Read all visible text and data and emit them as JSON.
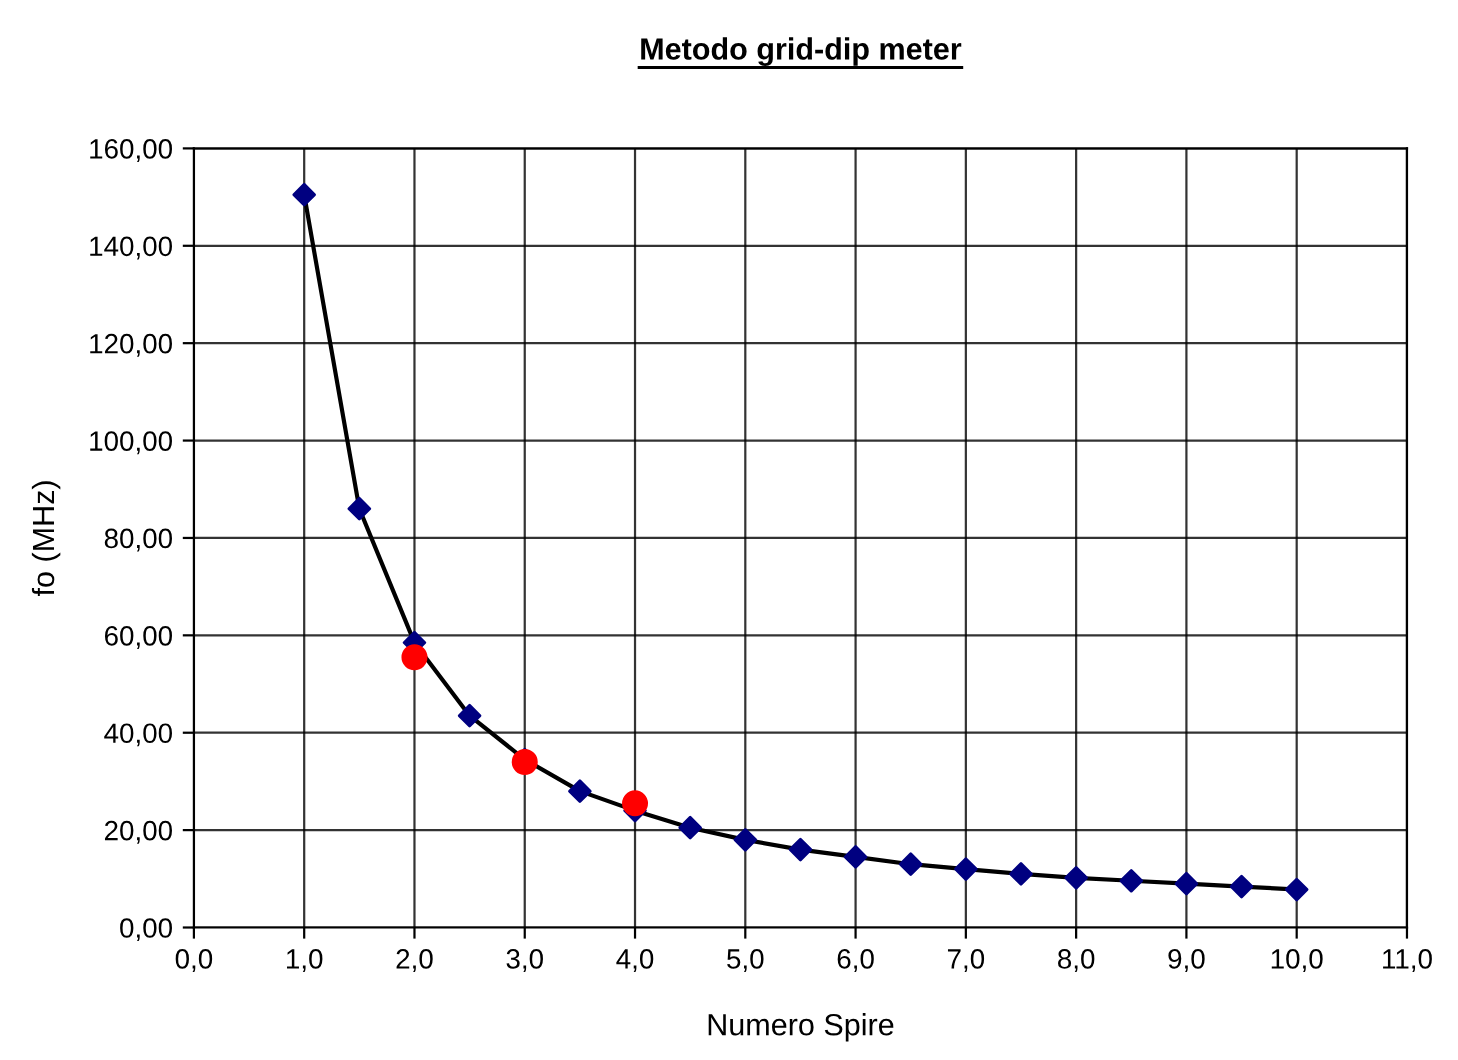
{
  "chart_data": {
    "type": "line",
    "title": "Metodo grid-dip meter",
    "xlabel": "Numero Spire",
    "ylabel": "fo (MHz)",
    "xlim": [
      0,
      11
    ],
    "ylim": [
      0,
      160
    ],
    "xticks": [
      {
        "value": 0,
        "label": "0,0"
      },
      {
        "value": 1,
        "label": "1,0"
      },
      {
        "value": 2,
        "label": "2,0"
      },
      {
        "value": 3,
        "label": "3,0"
      },
      {
        "value": 4,
        "label": "4,0"
      },
      {
        "value": 5,
        "label": "5,0"
      },
      {
        "value": 6,
        "label": "6,0"
      },
      {
        "value": 7,
        "label": "7,0"
      },
      {
        "value": 8,
        "label": "8,0"
      },
      {
        "value": 9,
        "label": "9,0"
      },
      {
        "value": 10,
        "label": "10,0"
      },
      {
        "value": 11,
        "label": "11,0"
      }
    ],
    "yticks": [
      {
        "value": 0,
        "label": "0,00"
      },
      {
        "value": 20,
        "label": "20,00"
      },
      {
        "value": 40,
        "label": "40,00"
      },
      {
        "value": 60,
        "label": "60,00"
      },
      {
        "value": 80,
        "label": "80,00"
      },
      {
        "value": 100,
        "label": "100,00"
      },
      {
        "value": 120,
        "label": "120,00"
      },
      {
        "value": 140,
        "label": "140,00"
      },
      {
        "value": 160,
        "label": "160,00"
      }
    ],
    "grid": true,
    "legend": false,
    "series": [
      {
        "marker": "diamond",
        "color": "#000000",
        "colors": [
          "#000080",
          "#000080",
          "#000080",
          "#000080",
          "#000080",
          "#000080",
          "#000080",
          "#000080",
          "#000080",
          "#000080",
          "#000080",
          "#000080",
          "#000080",
          "#000080",
          "#000080",
          "#000080",
          "#000080",
          "#000080",
          "#000080"
        ],
        "x": [
          1,
          1.5,
          2,
          2.5,
          3,
          3.5,
          4,
          4.5,
          5,
          5.5,
          6,
          6.5,
          7,
          7.5,
          8,
          8.5,
          9,
          9.5,
          10
        ],
        "values": [
          150.5,
          86,
          58.5,
          43.5,
          34.5,
          28,
          24,
          20.5,
          18,
          16,
          14.5,
          13,
          12,
          11,
          10.2,
          9.6,
          9,
          8.4,
          7.8
        ]
      },
      {
        "type": "scatter",
        "marker": "circle",
        "color": "#ff0000",
        "x": [
          2,
          3,
          4
        ],
        "values": [
          55.5,
          34,
          25.5
        ]
      }
    ]
  }
}
